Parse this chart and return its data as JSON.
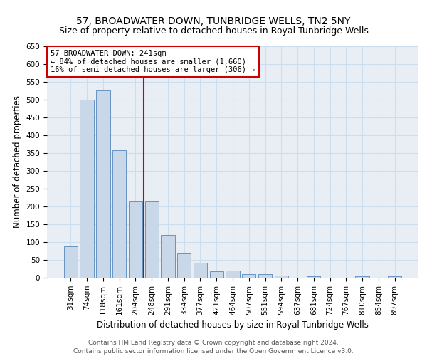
{
  "title": "57, BROADWATER DOWN, TUNBRIDGE WELLS, TN2 5NY",
  "subtitle": "Size of property relative to detached houses in Royal Tunbridge Wells",
  "xlabel": "Distribution of detached houses by size in Royal Tunbridge Wells",
  "ylabel": "Number of detached properties",
  "footer1": "Contains HM Land Registry data © Crown copyright and database right 2024.",
  "footer2": "Contains public sector information licensed under the Open Government Licence v3.0.",
  "categories": [
    "31sqm",
    "74sqm",
    "118sqm",
    "161sqm",
    "204sqm",
    "248sqm",
    "291sqm",
    "334sqm",
    "377sqm",
    "421sqm",
    "464sqm",
    "507sqm",
    "551sqm",
    "594sqm",
    "637sqm",
    "681sqm",
    "724sqm",
    "767sqm",
    "810sqm",
    "854sqm",
    "897sqm"
  ],
  "values": [
    88,
    500,
    527,
    358,
    214,
    214,
    120,
    68,
    43,
    18,
    20,
    11,
    11,
    6,
    0,
    4,
    0,
    0,
    4,
    0,
    5
  ],
  "bar_color": "#c8d8e8",
  "bar_edge_color": "#5588bb",
  "ref_line_index": 5,
  "ref_line_label": "57 BROADWATER DOWN: 241sqm",
  "annotation_line1": "← 84% of detached houses are smaller (1,660)",
  "annotation_line2": "16% of semi-detached houses are larger (306) →",
  "annotation_box_color": "#ffffff",
  "annotation_box_edge": "#cc0000",
  "ref_line_color": "#cc0000",
  "ylim": [
    0,
    650
  ],
  "yticks": [
    0,
    50,
    100,
    150,
    200,
    250,
    300,
    350,
    400,
    450,
    500,
    550,
    600,
    650
  ],
  "grid_color": "#ccddee",
  "background_color": "#e8eef4",
  "title_fontsize": 10,
  "subtitle_fontsize": 9,
  "xlabel_fontsize": 8.5,
  "ylabel_fontsize": 8.5,
  "tick_fontsize": 7.5,
  "footer_fontsize": 6.5,
  "annot_fontsize": 7.5
}
